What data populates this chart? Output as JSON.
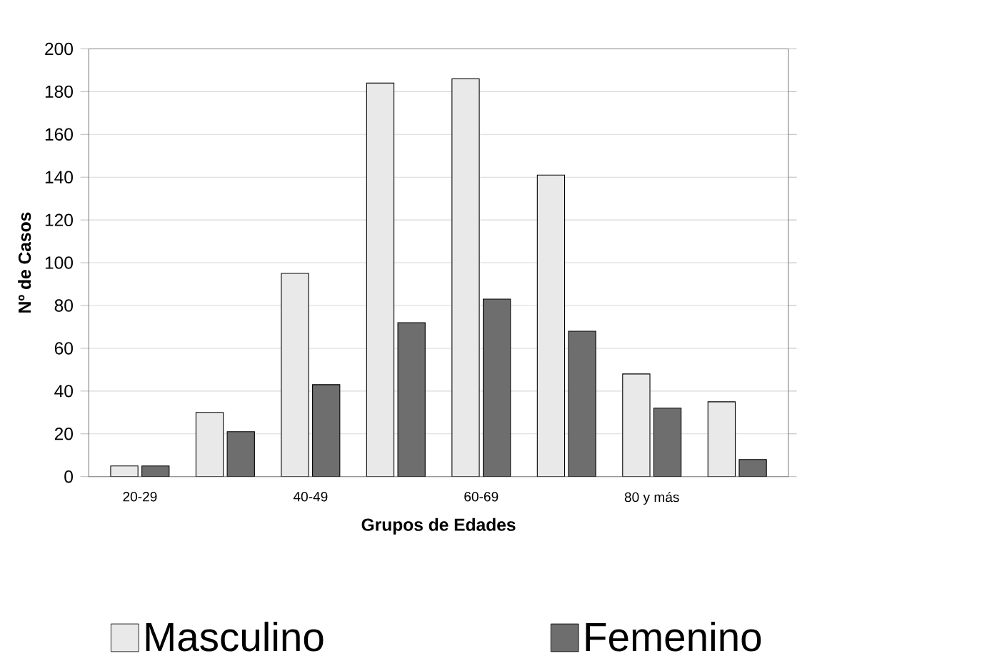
{
  "chart_data": {
    "type": "bar",
    "xlabel": "Grupos de Edades",
    "ylabel": "Nº de Casos",
    "categories": [
      "20-29",
      null,
      "40-49",
      null,
      "60-69",
      null,
      "80 y más",
      null
    ],
    "series": [
      {
        "name": "Masculino",
        "color": "#e9e9e9",
        "values": [
          5,
          30,
          95,
          184,
          186,
          141,
          48,
          35
        ]
      },
      {
        "name": "Femenino",
        "color": "#6e6e6e",
        "values": [
          5,
          21,
          43,
          72,
          83,
          68,
          32,
          8
        ]
      }
    ],
    "ylim": [
      0,
      200
    ],
    "yticks": [
      0,
      20,
      40,
      60,
      80,
      100,
      120,
      140,
      160,
      180,
      200
    ],
    "grid": "y",
    "legend": "bottom"
  }
}
